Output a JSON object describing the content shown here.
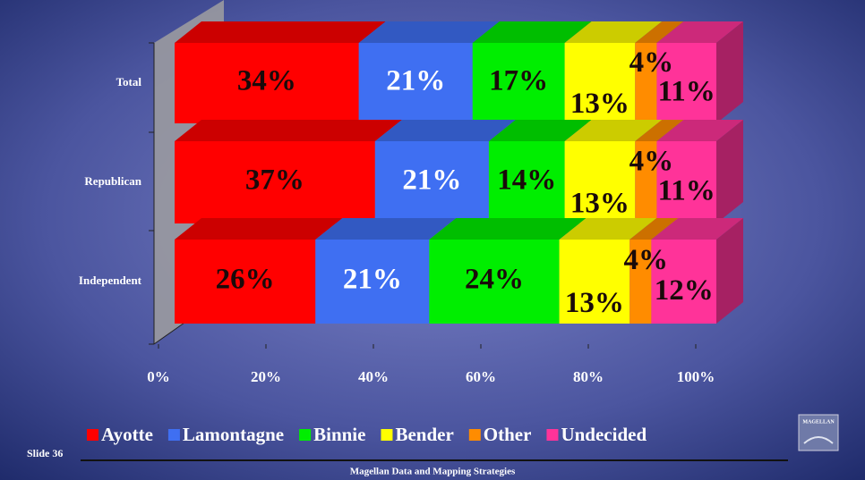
{
  "chart_data": {
    "type": "bar3d_stacked_horizontal",
    "categories": [
      "Total",
      "Republican",
      "Independent"
    ],
    "series": [
      {
        "name": "Ayotte",
        "color": "#ff0000",
        "values": [
          34,
          37,
          26
        ],
        "value_labels": [
          "34%",
          "37%",
          "26%"
        ]
      },
      {
        "name": "Lamontagne",
        "color": "#3f6ff2",
        "values": [
          21,
          21,
          21
        ],
        "value_labels": [
          "21%",
          "21%",
          "21%"
        ]
      },
      {
        "name": "Binnie",
        "color": "#00ee00",
        "values": [
          17,
          14,
          24
        ],
        "value_labels": [
          "17%",
          "14%",
          "24%"
        ]
      },
      {
        "name": "Bender",
        "color": "#ffff00",
        "values": [
          13,
          13,
          13
        ],
        "value_labels": [
          "13%",
          "13%",
          "13%"
        ]
      },
      {
        "name": "Other",
        "color": "#ff8c00",
        "values": [
          4,
          4,
          4
        ],
        "value_labels": [
          "4%",
          "4%",
          "4%"
        ]
      },
      {
        "name": "Undecided",
        "color": "#ff3399",
        "values": [
          11,
          11,
          12
        ],
        "value_labels": [
          "11%",
          "11%",
          "12%"
        ]
      }
    ],
    "xlim": [
      0,
      100
    ],
    "xticks": [
      {
        "value": 0,
        "label": "0%"
      },
      {
        "value": 20,
        "label": "20%"
      },
      {
        "value": 40,
        "label": "40%"
      },
      {
        "value": 60,
        "label": "60%"
      },
      {
        "value": 80,
        "label": "80%"
      },
      {
        "value": 100,
        "label": "100%"
      }
    ],
    "legend": "bottom"
  },
  "slide_number": "Slide 36",
  "footer": "Magellan Data and Mapping Strategies",
  "logo": "MAGELLAN"
}
